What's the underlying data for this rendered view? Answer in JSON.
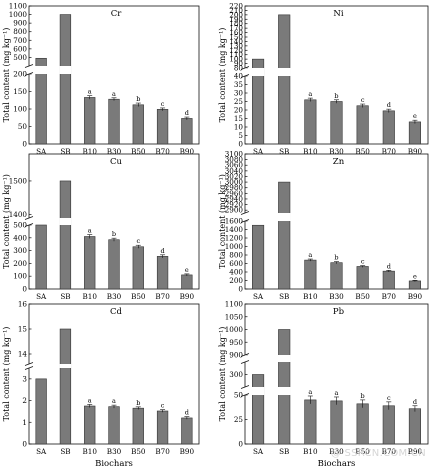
{
  "watermark": "@ SSRCN.COM.CN",
  "chart_data": [
    {
      "type": "bar",
      "title": "Cr",
      "ylabel": "Total content (mg kg⁻¹)",
      "xlabel": "",
      "categories": [
        "SA",
        "SB",
        "B10",
        "B30",
        "B50",
        "B70",
        "B90"
      ],
      "values": [
        490,
        1000,
        133,
        128,
        112,
        99,
        73
      ],
      "errors": [
        0,
        0,
        5,
        4,
        5,
        4,
        4
      ],
      "letters": [
        "",
        "",
        "a",
        "a",
        "b",
        "c",
        "d"
      ],
      "axis_segments": [
        {
          "range": [
            0,
            200
          ],
          "ticks": [
            0,
            50,
            100,
            150,
            200
          ]
        },
        {
          "range": [
            400,
            1100
          ],
          "ticks": [
            500,
            600,
            700,
            800,
            900,
            1000,
            1100
          ]
        }
      ],
      "bar_color": "#7a7a7a"
    },
    {
      "type": "bar",
      "title": "Ni",
      "ylabel": "Total content (mg kg⁻¹)",
      "xlabel": "",
      "categories": [
        "SA",
        "SB",
        "B10",
        "B30",
        "B50",
        "B70",
        "B90"
      ],
      "values": [
        100,
        200,
        26,
        25,
        22.5,
        19.5,
        13
      ],
      "errors": [
        0,
        0,
        1,
        1,
        1,
        1,
        1
      ],
      "letters": [
        "",
        "",
        "a",
        "b",
        "c",
        "d",
        "e"
      ],
      "axis_segments": [
        {
          "range": [
            0,
            40
          ],
          "ticks": [
            0,
            5,
            10,
            15,
            20,
            25,
            30,
            35,
            40
          ]
        },
        {
          "range": [
            80,
            220
          ],
          "ticks": [
            80,
            90,
            100,
            110,
            120,
            130,
            140,
            150,
            160,
            170,
            180,
            190,
            200,
            210,
            220
          ]
        }
      ],
      "bar_color": "#7a7a7a"
    },
    {
      "type": "bar",
      "title": "Cu",
      "ylabel": "Total content (mg kg⁻¹)",
      "xlabel": "",
      "categories": [
        "SA",
        "SB",
        "B10",
        "B30",
        "B50",
        "B70",
        "B90"
      ],
      "values": [
        500,
        1500,
        410,
        385,
        330,
        255,
        110
      ],
      "errors": [
        0,
        0,
        15,
        12,
        12,
        12,
        8
      ],
      "letters": [
        "",
        "",
        "a",
        "b",
        "c",
        "d",
        "e"
      ],
      "axis_segments": [
        {
          "range": [
            0,
            500
          ],
          "ticks": [
            0,
            100,
            200,
            300,
            400,
            500
          ]
        },
        {
          "range": [
            1390,
            1580
          ],
          "ticks": [
            1400,
            1500
          ]
        }
      ],
      "bar_color": "#7a7a7a"
    },
    {
      "type": "bar",
      "title": "Zn",
      "ylabel": "Total content (mg kg⁻¹)",
      "xlabel": "",
      "categories": [
        "SA",
        "SB",
        "B10",
        "B30",
        "B50",
        "B70",
        "B90"
      ],
      "values": [
        1500,
        3000,
        680,
        620,
        530,
        420,
        190
      ],
      "errors": [
        0,
        0,
        25,
        25,
        20,
        20,
        15
      ],
      "letters": [
        "",
        "",
        "a",
        "b",
        "c",
        "d",
        "e"
      ],
      "axis_segments": [
        {
          "range": [
            0,
            1600
          ],
          "ticks": [
            0,
            200,
            400,
            600,
            800,
            1000,
            1200,
            1400,
            1600
          ]
        },
        {
          "range": [
            2890,
            3100
          ],
          "ticks": [
            2900,
            2920,
            2940,
            2960,
            2980,
            3000,
            3020,
            3040,
            3060,
            3080,
            3100
          ]
        }
      ],
      "bar_color": "#7a7a7a"
    },
    {
      "type": "bar",
      "title": "Cd",
      "ylabel": "Total content (mg kg⁻¹)",
      "xlabel": "Biochars",
      "categories": [
        "SA",
        "SB",
        "B10",
        "B30",
        "B50",
        "B70",
        "B90"
      ],
      "values": [
        3.0,
        15,
        1.75,
        1.72,
        1.65,
        1.52,
        1.2
      ],
      "errors": [
        0,
        0,
        0.07,
        0.07,
        0.06,
        0.06,
        0.06
      ],
      "letters": [
        "",
        "",
        "a",
        "a",
        "b",
        "c",
        "d"
      ],
      "axis_segments": [
        {
          "range": [
            0,
            3.5
          ],
          "ticks": [
            0,
            1,
            2,
            3
          ]
        },
        {
          "range": [
            13.6,
            16
          ],
          "ticks": [
            14,
            15,
            16
          ]
        }
      ],
      "bar_color": "#7a7a7a"
    },
    {
      "type": "bar",
      "title": "Pb",
      "ylabel": "Total content (mg kg⁻¹)",
      "xlabel": "Biochars",
      "categories": [
        "SA",
        "SB",
        "B10",
        "B30",
        "B50",
        "B70",
        "B90"
      ],
      "values": [
        300,
        1000,
        45,
        44,
        41,
        39,
        36
      ],
      "errors": [
        0,
        0,
        4,
        4,
        4,
        4,
        3
      ],
      "letters": [
        "",
        "",
        "a",
        "a",
        "b",
        "c",
        "d"
      ],
      "axis_segments": [
        {
          "range": [
            0,
            50
          ],
          "ticks": [
            0,
            25,
            50
          ]
        },
        {
          "range": [
            250,
            350
          ],
          "ticks": [
            300
          ]
        },
        {
          "range": [
            900,
            1100
          ],
          "ticks": [
            900,
            950,
            1000,
            1050,
            1100
          ]
        }
      ],
      "bar_color": "#7a7a7a"
    }
  ]
}
